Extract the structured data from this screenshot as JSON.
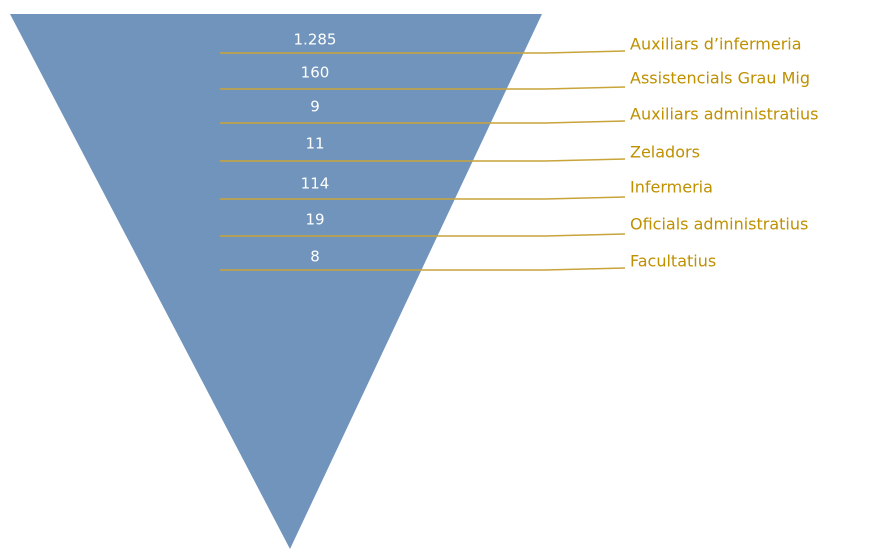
{
  "items": [
    {
      "value": "1.285",
      "label": "Auxiliars d’infermeria"
    },
    {
      "value": "160",
      "label": "Assistencials  Grau Mig"
    },
    {
      "value": "9",
      "label": "Auxiliars administratius"
    },
    {
      "value": "11",
      "label": "Zeladors"
    },
    {
      "value": "114",
      "label": "Infermeria"
    },
    {
      "value": "19",
      "label": "Oficials administratius"
    },
    {
      "value": "8",
      "label": "Facultatius"
    }
  ]
}
